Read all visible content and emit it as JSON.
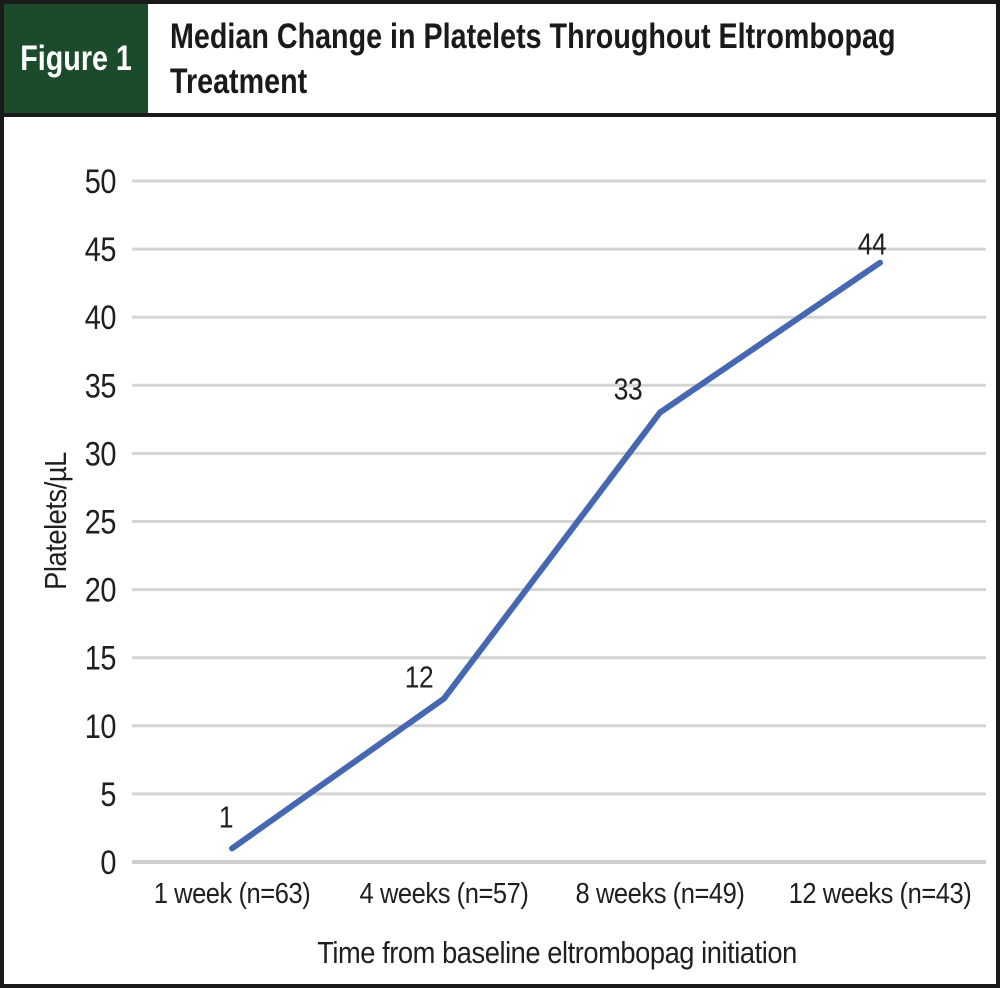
{
  "header": {
    "figure_label": "Figure 1",
    "title": "Median Change in Platelets Throughout Eltrombopag Treatment",
    "title_lines": [
      "Median Change in Platelets Throughout Eltrombopag",
      "Treatment"
    ],
    "badge_color": "#1c4b2b"
  },
  "chart_data": {
    "type": "line",
    "title": "Median Change in Platelets Throughout Eltrombopag Treatment",
    "categories": [
      "1 week (n=63)",
      "4 weeks (n=57)",
      "8 weeks (n=49)",
      "12 weeks (n=43)"
    ],
    "values": [
      1,
      12,
      33,
      44
    ],
    "data_labels": [
      "1",
      "12",
      "33",
      "44"
    ],
    "xlabel": "Time from baseline eltrombopag initiation",
    "ylabel": "Platelets/µL",
    "ylim": [
      0,
      50
    ],
    "ytick_step": 5,
    "grid": true,
    "legend": "none",
    "line_color": "#4668b1",
    "gridline_color": "#d5d5d5",
    "baseline_color": "#cfcfcf",
    "text_color": "#1f1f1f"
  }
}
